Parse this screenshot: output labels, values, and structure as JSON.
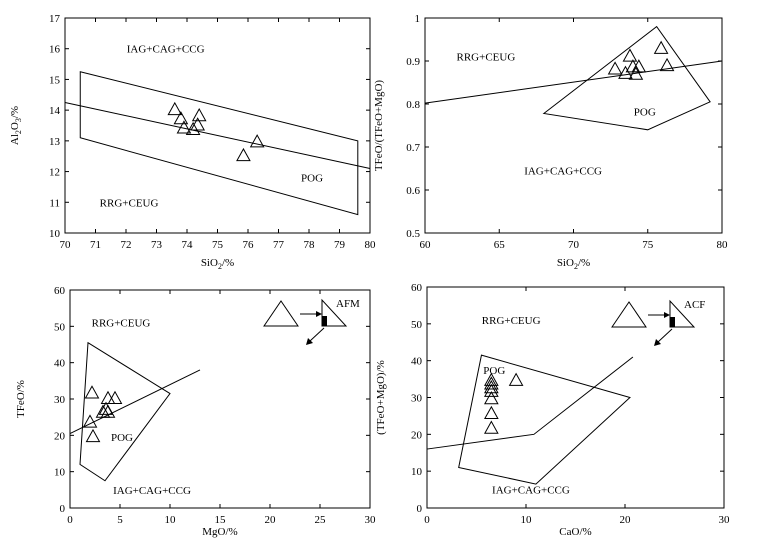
{
  "chart_data": [
    {
      "type": "scatter",
      "xlabel": "SiO2/%",
      "ylabel": "Al2O3/%",
      "xlim": [
        70,
        80
      ],
      "ylim": [
        10,
        17
      ],
      "xticks": [
        70,
        71,
        72,
        73,
        74,
        75,
        76,
        77,
        78,
        79,
        80
      ],
      "yticks": [
        10,
        11,
        12,
        13,
        14,
        15,
        16,
        17
      ],
      "field_labels": [
        {
          "text": "IAG+CAG+CCG",
          "x": 73.3,
          "y": 16.0
        },
        {
          "text": "RRG+CEUG",
          "x": 72.1,
          "y": 11.0
        },
        {
          "text": "POG",
          "x": 78.1,
          "y": 11.8
        }
      ],
      "polygons": [
        {
          "points": [
            [
              70.5,
              15.25
            ],
            [
              79.6,
              13.0
            ],
            [
              79.6,
              10.6
            ],
            [
              70.5,
              13.1
            ]
          ],
          "closed": true
        }
      ],
      "lines": [
        {
          "points": [
            [
              70,
              14.25
            ],
            [
              80,
              12.1
            ]
          ]
        }
      ],
      "marker": "open-triangle",
      "points": [
        {
          "x": 73.6,
          "y": 14.0
        },
        {
          "x": 73.8,
          "y": 13.7
        },
        {
          "x": 73.9,
          "y": 13.4
        },
        {
          "x": 74.2,
          "y": 13.35
        },
        {
          "x": 74.35,
          "y": 13.5
        },
        {
          "x": 74.4,
          "y": 13.8
        },
        {
          "x": 75.85,
          "y": 12.5
        },
        {
          "x": 76.3,
          "y": 12.95
        }
      ]
    },
    {
      "type": "scatter",
      "xlabel": "SiO2/%",
      "ylabel": "TFeO/(TFeO+MgO)",
      "xlim": [
        60,
        80
      ],
      "ylim": [
        0.5,
        1.0
      ],
      "xticks": [
        60,
        65,
        70,
        75,
        80
      ],
      "yticks": [
        0.5,
        0.6,
        0.7,
        0.8,
        0.9,
        1.0
      ],
      "field_labels": [
        {
          "text": "RRG+CEUG",
          "x": 64.1,
          "y": 0.91
        },
        {
          "text": "POG",
          "x": 74.8,
          "y": 0.783
        },
        {
          "text": "IAG+CAG+CCG",
          "x": 69.3,
          "y": 0.645
        }
      ],
      "polygons": [
        {
          "points": [
            [
              68.0,
              0.778
            ],
            [
              75.6,
              0.98
            ],
            [
              79.2,
              0.805
            ],
            [
              75.0,
              0.74
            ]
          ],
          "closed": true
        }
      ],
      "lines": [
        {
          "points": [
            [
              60,
              0.802
            ],
            [
              80,
              0.9
            ]
          ]
        }
      ],
      "marker": "open-triangle",
      "points": [
        {
          "x": 72.8,
          "y": 0.88
        },
        {
          "x": 73.5,
          "y": 0.87
        },
        {
          "x": 73.8,
          "y": 0.91
        },
        {
          "x": 74.0,
          "y": 0.885
        },
        {
          "x": 74.2,
          "y": 0.868
        },
        {
          "x": 74.4,
          "y": 0.885
        },
        {
          "x": 75.9,
          "y": 0.928
        },
        {
          "x": 76.3,
          "y": 0.888
        }
      ]
    },
    {
      "type": "scatter",
      "xlabel": "MgO/%",
      "ylabel": "TFeO/%",
      "xlim": [
        0,
        30
      ],
      "ylim": [
        0,
        60
      ],
      "xticks": [
        0,
        5,
        10,
        15,
        20,
        25,
        30
      ],
      "yticks": [
        0,
        10,
        20,
        30,
        40,
        50,
        60
      ],
      "inset_label": "AFM",
      "field_labels": [
        {
          "text": "RRG+CEUG",
          "x": 5.1,
          "y": 51.0
        },
        {
          "text": "POG",
          "x": 5.2,
          "y": 19.5
        },
        {
          "text": "IAG+CAG+CCG",
          "x": 8.2,
          "y": 5.0
        }
      ],
      "polygons": [
        {
          "points": [
            [
              1.8,
              45.5
            ],
            [
              10.0,
              31.5
            ],
            [
              3.5,
              7.5
            ],
            [
              1.0,
              12.0
            ]
          ],
          "closed": true
        }
      ],
      "lines": [
        {
          "points": [
            [
              0,
              20.5
            ],
            [
              13.0,
              38.0
            ]
          ]
        }
      ],
      "marker": "open-triangle",
      "points": [
        {
          "x": 2.0,
          "y": 23.5
        },
        {
          "x": 2.2,
          "y": 31.5
        },
        {
          "x": 2.3,
          "y": 19.5
        },
        {
          "x": 3.3,
          "y": 26.2
        },
        {
          "x": 3.6,
          "y": 27.0
        },
        {
          "x": 3.8,
          "y": 26.2
        },
        {
          "x": 3.8,
          "y": 30.0
        },
        {
          "x": 4.5,
          "y": 30.0
        }
      ]
    },
    {
      "type": "scatter",
      "xlabel": "CaO/%",
      "ylabel": "(TFeO+MgO)/%",
      "xlim": [
        0,
        30
      ],
      "ylim": [
        0,
        60
      ],
      "xticks": [
        0,
        10,
        20,
        30
      ],
      "yticks": [
        0,
        10,
        20,
        30,
        40,
        50,
        60
      ],
      "inset_label": "ACF",
      "field_labels": [
        {
          "text": "RRG+CEUG",
          "x": 8.5,
          "y": 51.0
        },
        {
          "text": "POG",
          "x": 6.8,
          "y": 37.5
        },
        {
          "text": "IAG+CAG+CCG",
          "x": 10.5,
          "y": 5.0
        }
      ],
      "polygons": [
        {
          "points": [
            [
              5.5,
              41.5
            ],
            [
              20.5,
              30.0
            ],
            [
              11.0,
              6.5
            ],
            [
              3.2,
              11.0
            ]
          ],
          "closed": true
        }
      ],
      "lines": [
        {
          "points": [
            [
              0,
              16.0
            ],
            [
              10.8,
              20.0
            ],
            [
              20.8,
              41.0
            ]
          ]
        }
      ],
      "marker": "open-triangle",
      "points": [
        {
          "x": 6.5,
          "y": 21.5
        },
        {
          "x": 6.5,
          "y": 25.5
        },
        {
          "x": 6.5,
          "y": 29.5
        },
        {
          "x": 6.5,
          "y": 31.5
        },
        {
          "x": 6.5,
          "y": 32.5
        },
        {
          "x": 6.5,
          "y": 33.5
        },
        {
          "x": 6.5,
          "y": 34.5
        },
        {
          "x": 9.0,
          "y": 34.5
        }
      ]
    }
  ]
}
